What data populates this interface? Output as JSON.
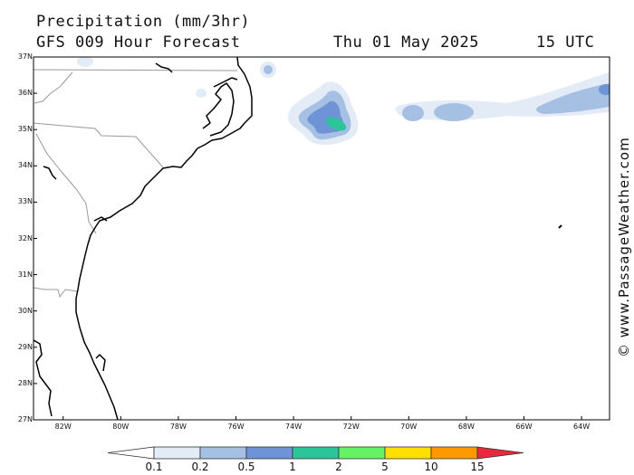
{
  "header": {
    "title": "Precipitation (mm/3hr)",
    "model": "GFS 009 Hour Forecast",
    "date": "Thu 01 May 2025",
    "time": "15 UTC"
  },
  "axes": {
    "lat_labels": [
      "37N",
      "36N",
      "35N",
      "34N",
      "33N",
      "32N",
      "31N",
      "30N",
      "29N",
      "28N",
      "27N"
    ],
    "lon_labels": [
      "82W",
      "80W",
      "78W",
      "76W",
      "74W",
      "72W",
      "70W",
      "68W",
      "66W",
      "64W"
    ]
  },
  "watermark": "© www.PassageWeather.com",
  "legend": {
    "labels": [
      "0.1",
      "0.2",
      "0.5",
      "1",
      "2",
      "5",
      "10",
      "15"
    ],
    "colors": [
      "#ffffff",
      "#e3ebf7",
      "#a6c0e3",
      "#6e93d6",
      "#2ec49a",
      "#66f266",
      "#ffe000",
      "#ff9900",
      "#e8283c"
    ]
  },
  "map": {
    "extent": {
      "lon_min": -83,
      "lon_max": -63.5,
      "lat_min": 27,
      "lat_max": 37
    },
    "colors": {
      "land_border": "#999999",
      "coast": "#000000"
    }
  }
}
